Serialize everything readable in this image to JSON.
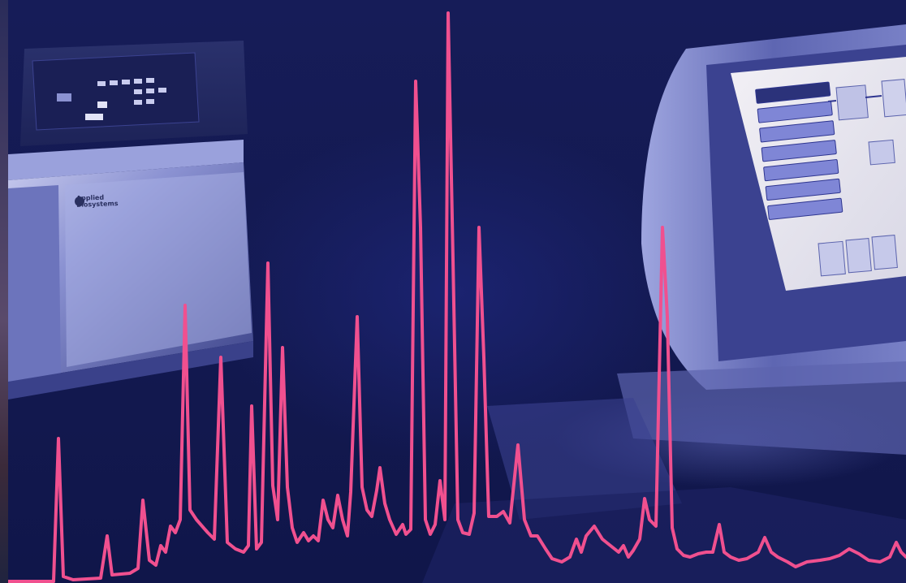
{
  "scene": {
    "description_free": true
  },
  "instrument": {
    "brand_line1": "Applied",
    "brand_line2": "Biosystems"
  },
  "monitor": {
    "menu_items": [
      "",
      "",
      "",
      "",
      "",
      "",
      ""
    ]
  },
  "colors": {
    "background": "#141a52",
    "trace": "#f0508f",
    "equipment_highlight": "#b9bde6",
    "equipment_shadow": "#4a5296",
    "screen": "#e9e8ef"
  },
  "icons": [
    "logo-icon",
    "keypad-icon"
  ]
}
